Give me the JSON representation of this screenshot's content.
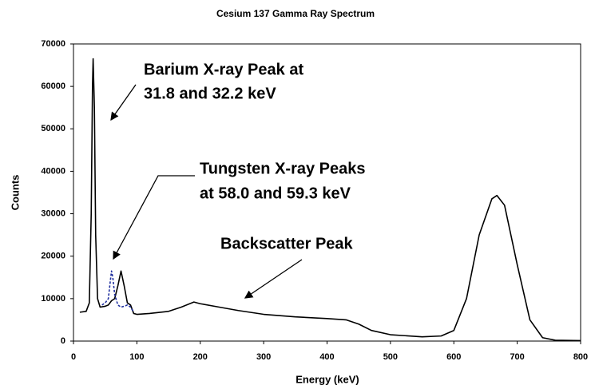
{
  "chart_data": {
    "type": "line",
    "title": "Cesium 137 Gamma Ray Spectrum",
    "x_label": "Energy (keV)",
    "y_label": "Counts",
    "xlim": [
      0,
      800
    ],
    "ylim": [
      0,
      70000
    ],
    "xticks": [
      0,
      100,
      200,
      300,
      400,
      500,
      600,
      700,
      800
    ],
    "yticks": [
      0,
      10000,
      20000,
      30000,
      40000,
      50000,
      60000,
      70000
    ],
    "series": [
      {
        "color": "#000000",
        "dashed": false,
        "x": [
          10,
          20,
          25,
          28,
          30,
          31,
          33,
          35,
          38,
          42,
          50,
          55,
          60,
          65,
          70,
          75,
          80,
          85,
          90,
          95,
          100,
          120,
          150,
          170,
          190,
          200,
          230,
          260,
          300,
          350,
          400,
          430,
          450,
          470,
          500,
          550,
          580,
          600,
          620,
          640,
          660,
          668,
          680,
          700,
          720,
          740,
          760,
          800
        ],
        "values": [
          6800,
          7000,
          9000,
          30000,
          60000,
          66500,
          55000,
          25000,
          10000,
          8000,
          8200,
          8500,
          9500,
          10000,
          13000,
          16500,
          13000,
          9000,
          8500,
          6500,
          6300,
          6500,
          7000,
          8000,
          9200,
          8800,
          8000,
          7200,
          6300,
          5700,
          5300,
          5000,
          4000,
          2500,
          1500,
          1000,
          1200,
          2500,
          10000,
          25000,
          33500,
          34300,
          32000,
          18000,
          5000,
          800,
          200,
          100
        ]
      },
      {
        "color": "#1f2f9f",
        "dashed": true,
        "x": [
          45,
          50,
          55,
          58,
          60,
          62,
          65,
          70,
          75,
          80,
          85,
          90,
          95
        ],
        "values": [
          8500,
          9000,
          10000,
          14000,
          16500,
          15000,
          11000,
          8500,
          8000,
          8200,
          8500,
          8000,
          6800
        ]
      }
    ],
    "annotations": [
      {
        "text": [
          "Barium X-ray Peak at",
          "31.8 and 32.2 keV"
        ]
      },
      {
        "text": [
          "Tungsten X-ray Peaks",
          "at 58.0 and 59.3 keV"
        ]
      },
      {
        "text": [
          "Backscatter Peak"
        ]
      }
    ]
  }
}
